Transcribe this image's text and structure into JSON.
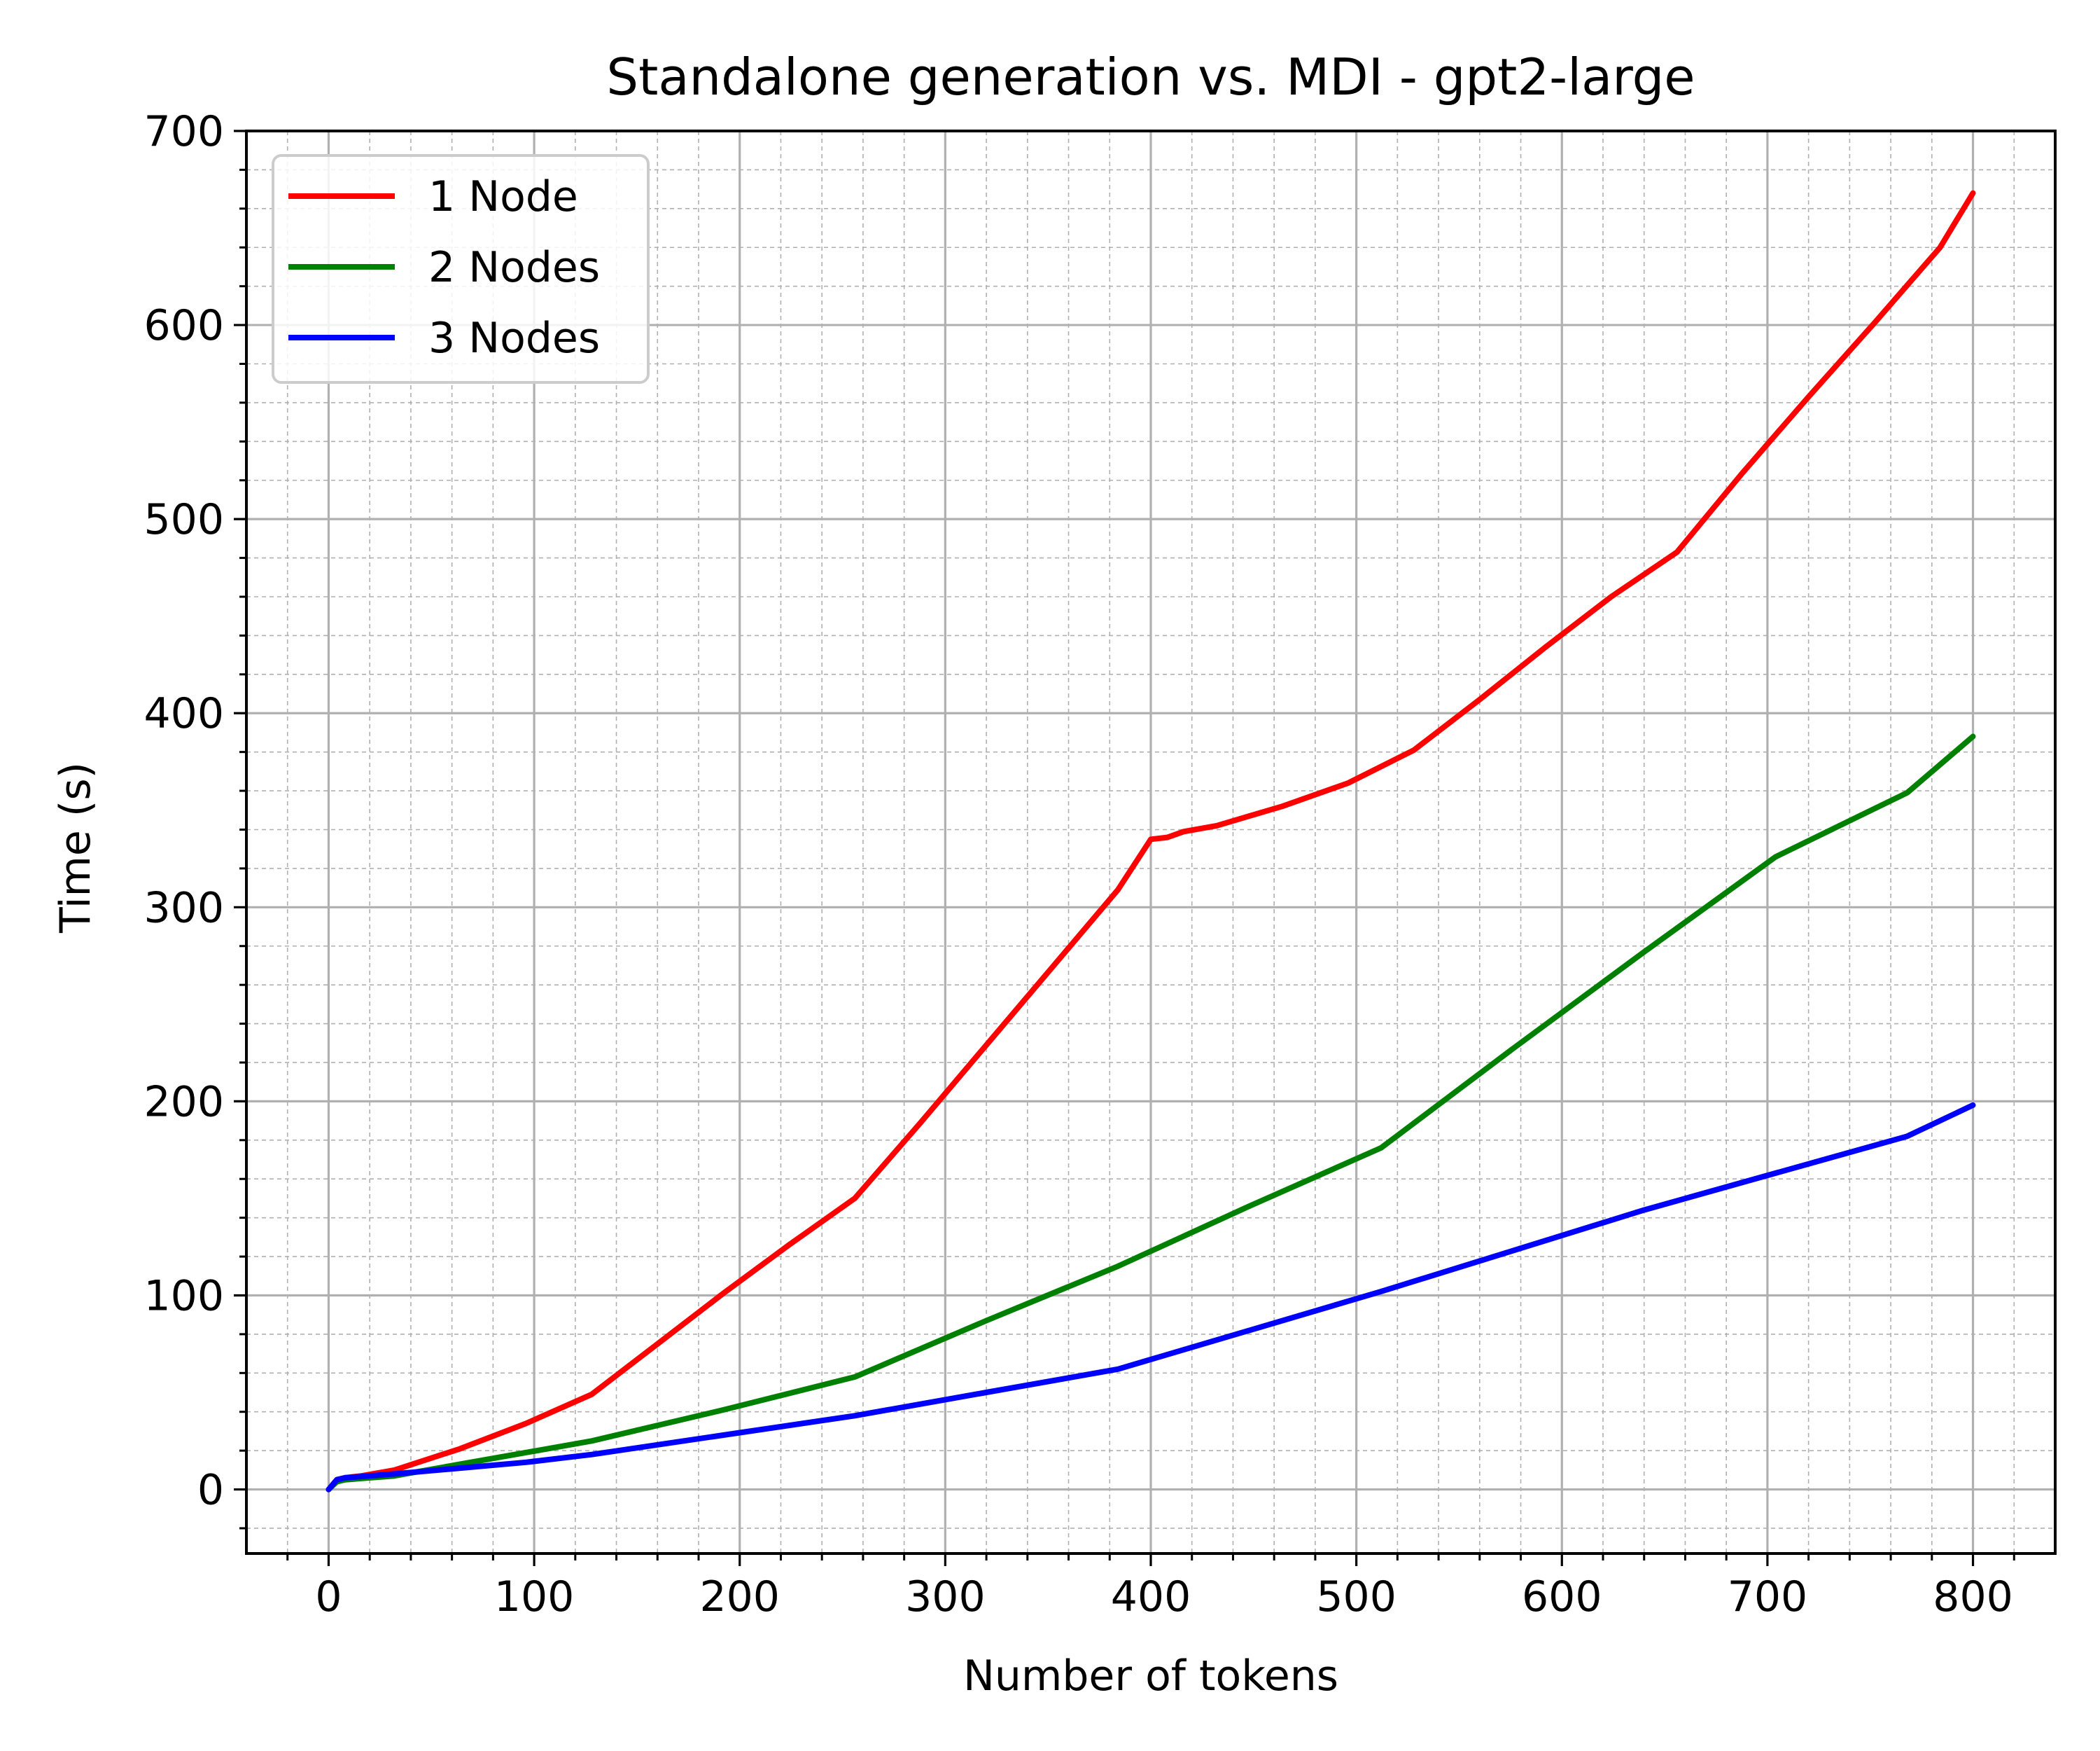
{
  "chart_data": {
    "type": "line",
    "title": "Standalone generation vs. MDI - gpt2-large",
    "xlabel": "Number of tokens",
    "ylabel": "Time (s)",
    "xlim": [
      -40,
      840
    ],
    "ylim": [
      -33,
      700
    ],
    "xticks": [
      0,
      100,
      200,
      300,
      400,
      500,
      600,
      700,
      800
    ],
    "yticks": [
      0,
      100,
      200,
      300,
      400,
      500,
      600,
      700
    ],
    "grid": true,
    "legend": "top-left",
    "series": [
      {
        "name": "1 Node",
        "color": "#ff0000",
        "x": [
          0,
          4,
          8,
          16,
          32,
          64,
          96,
          128,
          160,
          192,
          224,
          256,
          288,
          320,
          352,
          384,
          400,
          408,
          416,
          432,
          464,
          496,
          528,
          560,
          592,
          624,
          656,
          688,
          720,
          752,
          784,
          800
        ],
        "y": [
          0,
          5,
          6,
          7,
          10,
          21,
          34,
          49,
          75,
          101,
          126,
          150,
          189,
          229,
          269,
          309,
          335,
          336,
          339,
          342,
          352,
          364,
          381,
          407,
          434,
          460,
          483,
          524,
          563,
          601,
          640,
          668
        ]
      },
      {
        "name": "2 Nodes",
        "color": "#008000",
        "x": [
          0,
          4,
          8,
          32,
          64,
          128,
          192,
          256,
          320,
          384,
          448,
          512,
          576,
          640,
          704,
          768,
          800
        ],
        "y": [
          0,
          4,
          5,
          7,
          13,
          25,
          41,
          58,
          87,
          115,
          146,
          176,
          227,
          277,
          326,
          359,
          388
        ]
      },
      {
        "name": "3 Nodes",
        "color": "#0000ff",
        "x": [
          0,
          4,
          8,
          32,
          64,
          96,
          128,
          192,
          256,
          320,
          384,
          448,
          512,
          576,
          640,
          704,
          768,
          800
        ],
        "y": [
          0,
          5,
          6,
          8,
          11,
          14,
          18,
          28,
          38,
          50,
          62,
          82,
          102,
          123,
          144,
          163,
          182,
          198
        ]
      }
    ]
  }
}
